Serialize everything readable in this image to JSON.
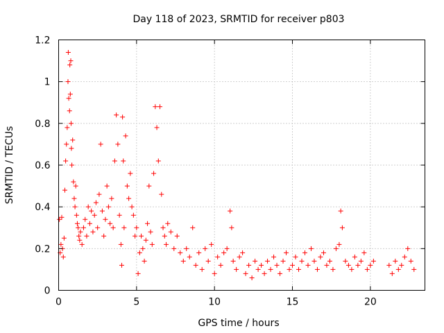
{
  "chart_data": {
    "type": "scatter",
    "title": "Day 118 of 2023, SRMTID for receiver p803",
    "xlabel": "GPS time / hours",
    "ylabel": "SRMTID / TECUs",
    "xlim": [
      0,
      23.5
    ],
    "ylim": [
      0,
      1.2
    ],
    "xticks": [
      0,
      5,
      10,
      15,
      20
    ],
    "xtick_labels": [
      "0",
      "5",
      "10",
      "15",
      "20"
    ],
    "yticks": [
      0,
      0.2,
      0.4,
      0.6,
      0.8,
      1.0,
      1.2
    ],
    "ytick_labels": [
      "0",
      "0.2",
      "0.4",
      "0.6",
      "0.8",
      "1",
      "1.2"
    ],
    "grid": true,
    "marker": "plus",
    "series": [
      {
        "name": "SRMTID",
        "color": "#ff0000",
        "points": [
          [
            0.05,
            0.34
          ],
          [
            0.1,
            0.18
          ],
          [
            0.15,
            0.22
          ],
          [
            0.2,
            0.35
          ],
          [
            0.25,
            0.2
          ],
          [
            0.3,
            0.16
          ],
          [
            0.35,
            0.25
          ],
          [
            0.4,
            0.48
          ],
          [
            0.45,
            0.62
          ],
          [
            0.5,
            0.7
          ],
          [
            0.55,
            0.78
          ],
          [
            0.6,
            1.0
          ],
          [
            0.62,
            1.14
          ],
          [
            0.65,
            0.92
          ],
          [
            0.7,
            0.86
          ],
          [
            0.72,
            1.08
          ],
          [
            0.75,
            0.94
          ],
          [
            0.78,
            1.1
          ],
          [
            0.8,
            0.8
          ],
          [
            0.82,
            0.68
          ],
          [
            0.85,
            0.6
          ],
          [
            0.9,
            0.72
          ],
          [
            0.95,
            0.52
          ],
          [
            1.0,
            0.44
          ],
          [
            1.05,
            0.4
          ],
          [
            1.1,
            0.5
          ],
          [
            1.15,
            0.36
          ],
          [
            1.2,
            0.32
          ],
          [
            1.25,
            0.3
          ],
          [
            1.3,
            0.26
          ],
          [
            1.35,
            0.24
          ],
          [
            1.4,
            0.28
          ],
          [
            1.5,
            0.22
          ],
          [
            1.6,
            0.3
          ],
          [
            1.7,
            0.34
          ],
          [
            1.8,
            0.26
          ],
          [
            1.9,
            0.4
          ],
          [
            2.0,
            0.32
          ],
          [
            2.1,
            0.38
          ],
          [
            2.2,
            0.28
          ],
          [
            2.3,
            0.36
          ],
          [
            2.4,
            0.42
          ],
          [
            2.5,
            0.3
          ],
          [
            2.6,
            0.46
          ],
          [
            2.7,
            0.7
          ],
          [
            2.8,
            0.38
          ],
          [
            2.9,
            0.26
          ],
          [
            3.0,
            0.34
          ],
          [
            3.1,
            0.5
          ],
          [
            3.2,
            0.4
          ],
          [
            3.3,
            0.32
          ],
          [
            3.4,
            0.44
          ],
          [
            3.5,
            0.3
          ],
          [
            3.6,
            0.62
          ],
          [
            3.7,
            0.84
          ],
          [
            3.8,
            0.7
          ],
          [
            3.9,
            0.36
          ],
          [
            4.0,
            0.22
          ],
          [
            4.05,
            0.12
          ],
          [
            4.1,
            0.83
          ],
          [
            4.15,
            0.62
          ],
          [
            4.2,
            0.3
          ],
          [
            4.3,
            0.74
          ],
          [
            4.4,
            0.5
          ],
          [
            4.5,
            0.44
          ],
          [
            4.6,
            0.56
          ],
          [
            4.7,
            0.4
          ],
          [
            4.8,
            0.36
          ],
          [
            4.9,
            0.26
          ],
          [
            5.0,
            0.3
          ],
          [
            5.1,
            0.08
          ],
          [
            5.2,
            0.18
          ],
          [
            5.3,
            0.26
          ],
          [
            5.4,
            0.2
          ],
          [
            5.5,
            0.14
          ],
          [
            5.6,
            0.24
          ],
          [
            5.7,
            0.32
          ],
          [
            5.8,
            0.5
          ],
          [
            5.9,
            0.28
          ],
          [
            6.0,
            0.22
          ],
          [
            6.1,
            0.56
          ],
          [
            6.2,
            0.88
          ],
          [
            6.3,
            0.78
          ],
          [
            6.4,
            0.62
          ],
          [
            6.5,
            0.88
          ],
          [
            6.6,
            0.46
          ],
          [
            6.7,
            0.3
          ],
          [
            6.8,
            0.26
          ],
          [
            6.9,
            0.22
          ],
          [
            7.0,
            0.32
          ],
          [
            7.2,
            0.28
          ],
          [
            7.4,
            0.2
          ],
          [
            7.6,
            0.26
          ],
          [
            7.8,
            0.18
          ],
          [
            8.0,
            0.14
          ],
          [
            8.2,
            0.2
          ],
          [
            8.4,
            0.16
          ],
          [
            8.6,
            0.3
          ],
          [
            8.8,
            0.12
          ],
          [
            9.0,
            0.18
          ],
          [
            9.2,
            0.1
          ],
          [
            9.4,
            0.2
          ],
          [
            9.6,
            0.14
          ],
          [
            9.8,
            0.22
          ],
          [
            10.0,
            0.08
          ],
          [
            10.2,
            0.16
          ],
          [
            10.4,
            0.12
          ],
          [
            10.6,
            0.18
          ],
          [
            10.8,
            0.2
          ],
          [
            11.0,
            0.38
          ],
          [
            11.1,
            0.3
          ],
          [
            11.2,
            0.14
          ],
          [
            11.4,
            0.1
          ],
          [
            11.6,
            0.16
          ],
          [
            11.8,
            0.18
          ],
          [
            12.0,
            0.08
          ],
          [
            12.2,
            0.12
          ],
          [
            12.4,
            0.06
          ],
          [
            12.6,
            0.14
          ],
          [
            12.8,
            0.1
          ],
          [
            13.0,
            0.12
          ],
          [
            13.2,
            0.08
          ],
          [
            13.4,
            0.14
          ],
          [
            13.6,
            0.1
          ],
          [
            13.8,
            0.16
          ],
          [
            14.0,
            0.12
          ],
          [
            14.2,
            0.08
          ],
          [
            14.4,
            0.14
          ],
          [
            14.6,
            0.18
          ],
          [
            14.8,
            0.1
          ],
          [
            15.0,
            0.12
          ],
          [
            15.2,
            0.16
          ],
          [
            15.4,
            0.1
          ],
          [
            15.6,
            0.14
          ],
          [
            15.8,
            0.18
          ],
          [
            16.0,
            0.12
          ],
          [
            16.2,
            0.2
          ],
          [
            16.4,
            0.14
          ],
          [
            16.6,
            0.1
          ],
          [
            16.8,
            0.16
          ],
          [
            17.0,
            0.18
          ],
          [
            17.2,
            0.12
          ],
          [
            17.4,
            0.14
          ],
          [
            17.6,
            0.1
          ],
          [
            17.8,
            0.2
          ],
          [
            18.0,
            0.22
          ],
          [
            18.1,
            0.38
          ],
          [
            18.2,
            0.3
          ],
          [
            18.4,
            0.14
          ],
          [
            18.6,
            0.12
          ],
          [
            18.8,
            0.1
          ],
          [
            19.0,
            0.16
          ],
          [
            19.2,
            0.12
          ],
          [
            19.4,
            0.14
          ],
          [
            19.6,
            0.18
          ],
          [
            19.8,
            0.1
          ],
          [
            20.0,
            0.12
          ],
          [
            20.2,
            0.14
          ],
          [
            21.2,
            0.12
          ],
          [
            21.4,
            0.08
          ],
          [
            21.6,
            0.14
          ],
          [
            21.8,
            0.1
          ],
          [
            22.0,
            0.12
          ],
          [
            22.2,
            0.16
          ],
          [
            22.4,
            0.2
          ],
          [
            22.6,
            0.14
          ],
          [
            22.8,
            0.1
          ]
        ]
      }
    ]
  }
}
